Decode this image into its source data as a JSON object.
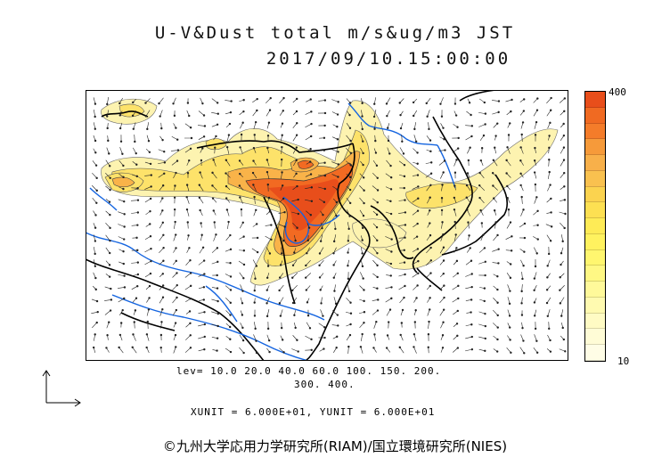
{
  "header": {
    "title_line1": "U-V&Dust total m/s&ug/m3 JST",
    "title_line2": "2017/09/10.15:00:00"
  },
  "legend": {
    "max_label": "400",
    "min_label": "10",
    "colors": [
      "#e84e1b",
      "#f06a22",
      "#f47c2a",
      "#f69a3a",
      "#f8b04a",
      "#f9c14f",
      "#fbd34f",
      "#fde052",
      "#feeb56",
      "#fff25f",
      "#fff66f",
      "#fff884",
      "#fff99a",
      "#fffab0",
      "#fffbc4",
      "#fffcd6",
      "#fffde6"
    ]
  },
  "footer": {
    "lev_line1": "lev= 10.0 20.0 40.0 60.0 100. 150. 200.",
    "lev_line2": "300. 400.",
    "units": "XUNIT = 6.000E+01, YUNIT = 6.000E+01",
    "credit": "©九州大学応用力学研究所(RIAM)/国立環境研究所(NIES)"
  },
  "map_colors": {
    "heavy": "#f26a22",
    "core": "#e84e1b",
    "mid": "#fbb34a",
    "light": "#fde46a",
    "faint": "#fdf2a8",
    "river": "#1565e0",
    "coast": "#000000"
  }
}
